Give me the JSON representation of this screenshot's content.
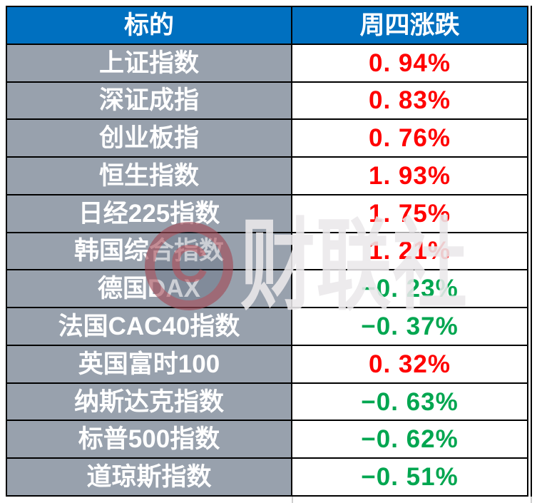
{
  "colors": {
    "header_bg": "#0070C0",
    "header_text": "#FFFFFF",
    "name_bg": "#98A1AD",
    "name_text": "#FFFFFF",
    "value_bg": "#FFFFFF",
    "up": "#FF0000",
    "down": "#00A650",
    "border": "#000000"
  },
  "table": {
    "headers": [
      {
        "label": "标的"
      },
      {
        "label": "周四涨跌"
      }
    ],
    "rows": [
      {
        "name": "上证指数",
        "change": "0. 94%",
        "direction": "up"
      },
      {
        "name": "深证成指",
        "change": "0. 83%",
        "direction": "up"
      },
      {
        "name": "创业板指",
        "change": "0. 76%",
        "direction": "up"
      },
      {
        "name": "恒生指数",
        "change": "1. 93%",
        "direction": "up"
      },
      {
        "name": "日经225指数",
        "change": "1. 75%",
        "direction": "up"
      },
      {
        "name": "韩国综合指数",
        "change": "1. 21%",
        "direction": "up"
      },
      {
        "name": "德国DAX",
        "change": "−0. 23%",
        "direction": "down"
      },
      {
        "name": "法国CAC40指数",
        "change": "−0. 37%",
        "direction": "down"
      },
      {
        "name": "英国富时100",
        "change": "0. 32%",
        "direction": "up"
      },
      {
        "name": "纳斯达克指数",
        "change": "−0. 63%",
        "direction": "down"
      },
      {
        "name": "标普500指数",
        "change": "−0. 62%",
        "direction": "down"
      },
      {
        "name": "道琼斯指数",
        "change": "−0. 51%",
        "direction": "down"
      }
    ]
  },
  "watermark": {
    "logo_letter": "C",
    "text": "财联社"
  },
  "chart_data": {
    "type": "table",
    "title": "周四涨跌",
    "columns": [
      "标的",
      "周四涨跌"
    ],
    "categories": [
      "上证指数",
      "深证成指",
      "创业板指",
      "恒生指数",
      "日经225指数",
      "韩国综合指数",
      "德国DAX",
      "法国CAC40指数",
      "英国富时100",
      "纳斯达克指数",
      "标普500指数",
      "道琼斯指数"
    ],
    "values_pct": [
      0.94,
      0.83,
      0.76,
      1.93,
      1.75,
      1.21,
      -0.23,
      -0.37,
      0.32,
      -0.63,
      -0.62,
      -0.51
    ],
    "positive_color": "#FF0000",
    "negative_color": "#00A650"
  }
}
